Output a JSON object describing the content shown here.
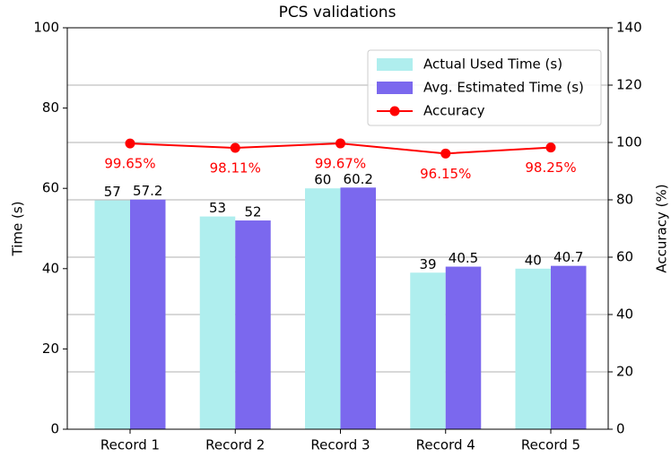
{
  "chart_data": {
    "type": "bar",
    "title": "PCS validations",
    "categories": [
      "Record 1",
      "Record 2",
      "Record 3",
      "Record 4",
      "Record 5"
    ],
    "series": [
      {
        "name": "Actual Used Time (s)",
        "color": "#afeeee",
        "values": [
          57,
          53,
          60,
          39,
          40
        ]
      },
      {
        "name": "Avg. Estimated Time (s)",
        "color": "#7b68ee",
        "values": [
          57.2,
          52,
          60.2,
          40.5,
          40.7
        ]
      },
      {
        "name": "Accuracy",
        "color": "#ff0000",
        "type": "line",
        "axis": "y2",
        "values": [
          99.65,
          98.11,
          99.67,
          96.15,
          98.25
        ],
        "value_labels": [
          "99.65%",
          "98.11%",
          "99.67%",
          "96.15%",
          "98.25%"
        ]
      }
    ],
    "ylabel": "Time (s)",
    "y2label": "Accuracy (%)",
    "ylim": [
      0,
      100
    ],
    "yticks": [
      0,
      20,
      40,
      60,
      80,
      100
    ],
    "y2lim": [
      0,
      140
    ],
    "y2ticks": [
      0,
      20,
      40,
      60,
      80,
      100,
      120,
      140
    ],
    "grid": true,
    "legend": "upper right"
  }
}
